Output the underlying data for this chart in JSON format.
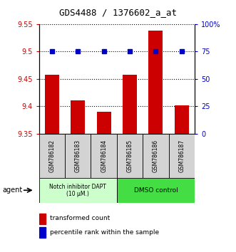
{
  "title": "GDS4488 / 1376602_a_at",
  "samples": [
    "GSM786182",
    "GSM786183",
    "GSM786184",
    "GSM786185",
    "GSM786186",
    "GSM786187"
  ],
  "transformed_counts": [
    9.457,
    9.41,
    9.39,
    9.457,
    9.538,
    9.402
  ],
  "percentile_ranks": [
    75,
    75,
    75,
    75,
    75,
    75
  ],
  "ylim_left": [
    9.35,
    9.55
  ],
  "ylim_right": [
    0,
    100
  ],
  "yticks_left": [
    9.35,
    9.4,
    9.45,
    9.5,
    9.55
  ],
  "yticks_right": [
    0,
    25,
    50,
    75,
    100
  ],
  "ytick_labels_left": [
    "9.35",
    "9.4",
    "9.45",
    "9.5",
    "9.55"
  ],
  "ytick_labels_right": [
    "0",
    "25",
    "50",
    "75",
    "100%"
  ],
  "bar_color": "#cc0000",
  "dot_color": "#0000cc",
  "group1_label": "Notch inhibitor DAPT\n(10 μM.)",
  "group2_label": "DMSO control",
  "group1_color": "#ccffcc",
  "group2_color": "#44dd44",
  "group1_indices": [
    0,
    1,
    2
  ],
  "group2_indices": [
    3,
    4,
    5
  ],
  "legend_bar_label": "transformed count",
  "legend_dot_label": "percentile rank within the sample",
  "agent_label": "agent",
  "bar_width": 0.55
}
